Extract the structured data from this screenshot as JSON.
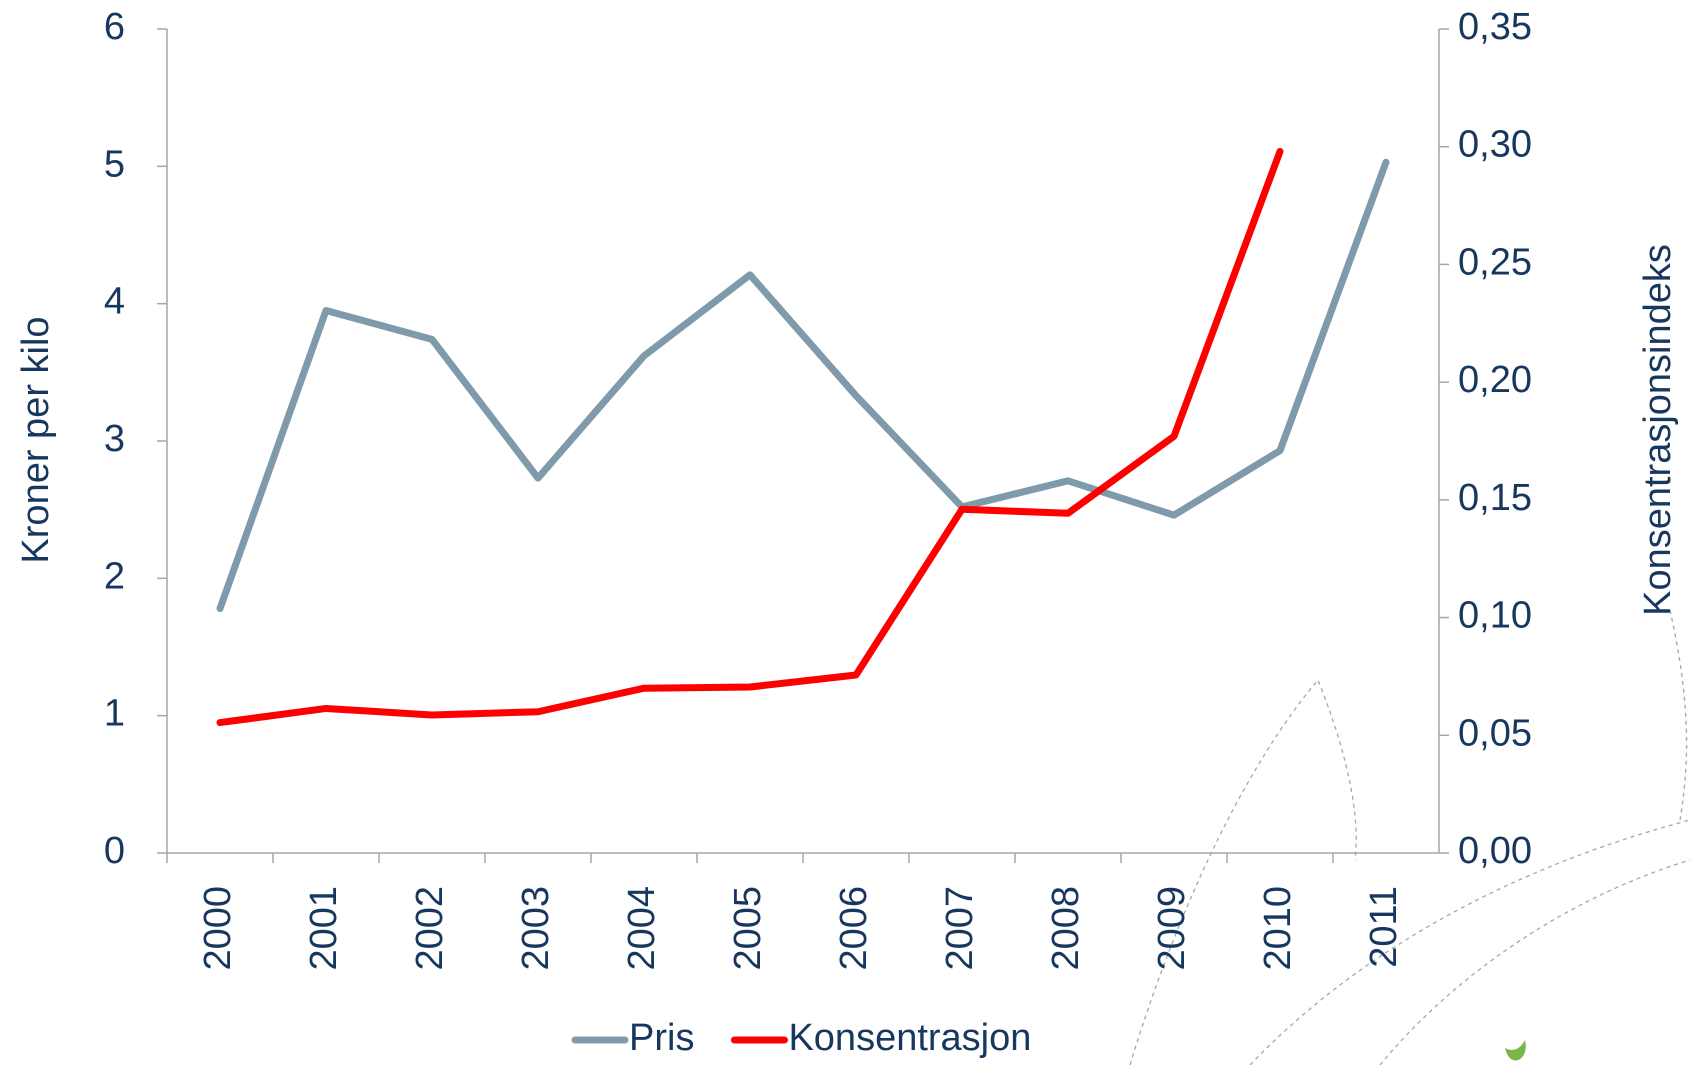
{
  "chart_data": {
    "type": "line",
    "y_label": "Kroner per kilo",
    "y2_label": "Konsentrasjonsindeks",
    "categories": [
      "2000",
      "2001",
      "2002",
      "2003",
      "2004",
      "2005",
      "2006",
      "2007",
      "2008",
      "2009",
      "2010",
      "2011"
    ],
    "series": [
      {
        "name": "Pris",
        "color": "#7f9aaa",
        "values": [
          1.78,
          3.95,
          3.74,
          2.73,
          3.62,
          4.21,
          3.33,
          2.52,
          2.71,
          2.46,
          2.93,
          5.03
        ]
      },
      {
        "name": "Konsentrasjon",
        "color": "#ff0000",
        "axis": "y2",
        "values": [
          0.0554,
          0.0614,
          0.0586,
          0.06,
          0.07,
          0.0705,
          0.0756,
          0.146,
          0.1443,
          0.177,
          0.298,
          null
        ]
      }
    ],
    "ylim": [
      0,
      6
    ],
    "yticks": [
      0,
      1,
      2,
      3,
      4,
      5,
      6
    ],
    "y2lim": [
      0,
      0.35
    ],
    "y2ticks": [
      {
        "value": 0,
        "label": "0,00"
      },
      {
        "value": 0.05,
        "label": "0,05"
      },
      {
        "value": 0.1,
        "label": "0,10"
      },
      {
        "value": 0.15,
        "label": "0,15"
      },
      {
        "value": 0.2,
        "label": "0,20"
      },
      {
        "value": 0.25,
        "label": "0,25"
      },
      {
        "value": 0.3,
        "label": "0,30"
      },
      {
        "value": 0.35,
        "label": "0,35"
      }
    ],
    "grid": false,
    "legend": "bottom"
  }
}
